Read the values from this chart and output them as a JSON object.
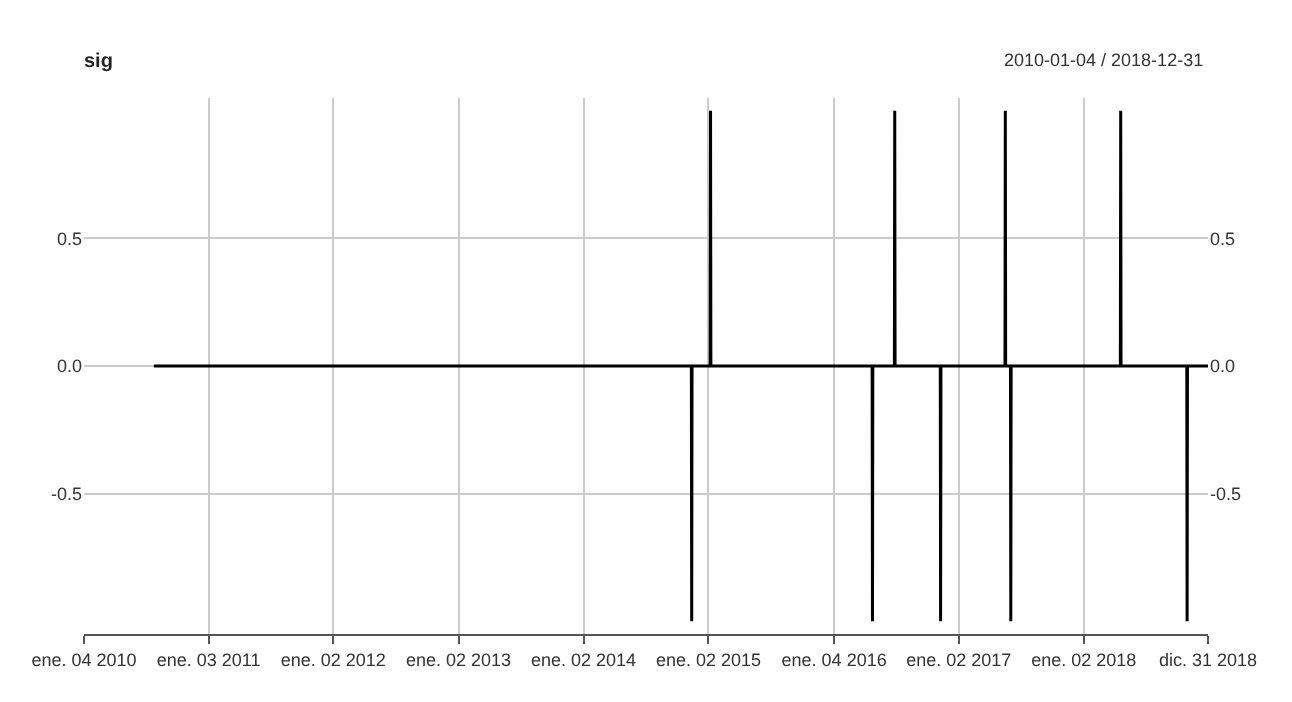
{
  "chart_data": {
    "type": "line",
    "title": "sig",
    "subtitle": "2010-01-04 / 2018-12-31",
    "x": [
      "2010-07-27",
      "2014-11-13",
      "2014-11-14",
      "2014-11-15",
      "2015-01-07",
      "2015-01-08",
      "2015-01-09",
      "2016-04-24",
      "2016-04-25",
      "2016-04-26",
      "2016-06-28",
      "2016-06-29",
      "2016-06-30",
      "2016-11-09",
      "2016-11-10",
      "2016-11-11",
      "2017-05-17",
      "2017-05-18",
      "2017-05-19",
      "2017-06-02",
      "2017-06-03",
      "2017-06-04",
      "2018-04-19",
      "2018-04-20",
      "2018-04-21",
      "2018-10-30",
      "2018-10-31",
      "2018-11-01",
      "2018-12-31"
    ],
    "series": [
      {
        "color": "#000000",
        "values": [
          0,
          0,
          -1,
          0,
          0,
          1,
          0,
          0,
          -1,
          0,
          0,
          1,
          0,
          0,
          -1,
          0,
          0,
          1,
          0,
          0,
          -1,
          0,
          0,
          1,
          0,
          0,
          -1,
          0,
          0
        ]
      }
    ],
    "xlim": [
      "2010-01-04",
      "2018-12-31"
    ],
    "xticks": [
      {
        "value": "2010-01-04",
        "label": "ene. 04 2010"
      },
      {
        "value": "2011-01-03",
        "label": "ene. 03 2011"
      },
      {
        "value": "2012-01-02",
        "label": "ene. 02 2012"
      },
      {
        "value": "2013-01-02",
        "label": "ene. 02 2013"
      },
      {
        "value": "2014-01-02",
        "label": "ene. 02 2014"
      },
      {
        "value": "2015-01-02",
        "label": "ene. 02 2015"
      },
      {
        "value": "2016-01-04",
        "label": "ene. 04 2016"
      },
      {
        "value": "2017-01-02",
        "label": "ene. 02 2017"
      },
      {
        "value": "2018-01-02",
        "label": "ene. 02 2018"
      },
      {
        "value": "2018-12-31",
        "label": "dic. 31 2018"
      }
    ],
    "ylim": [
      -1.05,
      1.05
    ],
    "yticks": [
      -0.5,
      {
        "value": 0,
        "label": "0.0"
      },
      0.5
    ],
    "y2lim": [
      -1.05,
      1.05
    ],
    "y2ticks": [
      -0.5,
      {
        "value": 0,
        "label": "0.0"
      },
      0.5
    ],
    "grid": true,
    "marker": "none",
    "line_style": "solid"
  }
}
